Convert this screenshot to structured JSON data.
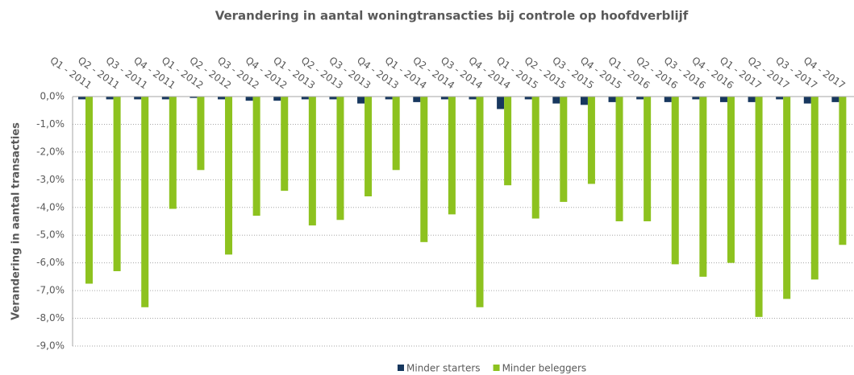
{
  "chart_data": {
    "type": "bar",
    "title": "Verandering  in  aantal  woningtransacties  bij  controle  op  hoofdverblijf",
    "y_label": "Verandering in aantal transacties",
    "categories": [
      "Q1 - 2011",
      "Q2 - 2011",
      "Q3 - 2011",
      "Q4 - 2011",
      "Q1 - 2012",
      "Q2 - 2012",
      "Q3 - 2012",
      "Q4 - 2012",
      "Q1 - 2013",
      "Q2 - 2013",
      "Q3 - 2013",
      "Q4 - 2013",
      "Q1 - 2014",
      "Q2 - 2014",
      "Q3 - 2014",
      "Q4 - 2014",
      "Q1 - 2015",
      "Q2 - 2015",
      "Q3 - 2015",
      "Q4 - 2015",
      "Q1 - 2016",
      "Q2 - 2016",
      "Q3 - 2016",
      "Q4 - 2016",
      "Q1 - 2017",
      "Q2 - 2017",
      "Q3 - 2017",
      "Q4 - 2017"
    ],
    "series": [
      {
        "name": "Minder starters",
        "color": "#17375e",
        "values": [
          -0.1,
          -0.1,
          -0.1,
          -0.1,
          -0.05,
          -0.1,
          -0.15,
          -0.15,
          -0.1,
          -0.1,
          -0.25,
          -0.1,
          -0.2,
          -0.1,
          -0.1,
          -0.45,
          -0.1,
          -0.25,
          -0.3,
          -0.2,
          -0.1,
          -0.2,
          -0.1,
          -0.2,
          -0.2,
          -0.1,
          -0.25,
          -0.2
        ]
      },
      {
        "name": "Minder beleggers",
        "color": "#8dc21f",
        "values": [
          -6.75,
          -6.3,
          -7.6,
          -4.05,
          -2.65,
          -5.7,
          -4.3,
          -3.4,
          -4.65,
          -4.45,
          -3.6,
          -2.65,
          -5.25,
          -4.25,
          -7.6,
          -3.2,
          -4.4,
          -3.8,
          -3.15,
          -4.5,
          -4.5,
          -6.05,
          -6.5,
          -6.0,
          -7.95,
          -7.3,
          -6.6,
          -5.35
        ]
      }
    ],
    "ylim": [
      -9,
      0
    ],
    "yticks": [
      {
        "value": 0,
        "label": "0,0%"
      },
      {
        "value": -1,
        "label": "-1,0%"
      },
      {
        "value": -2,
        "label": "-2,0%"
      },
      {
        "value": -3,
        "label": "-3,0%"
      },
      {
        "value": -4,
        "label": "-4,0%"
      },
      {
        "value": -5,
        "label": "-5,0%"
      },
      {
        "value": -6,
        "label": "-6,0%"
      },
      {
        "value": -7,
        "label": "-7,0%"
      },
      {
        "value": -8,
        "label": "-8,0%"
      },
      {
        "value": -9,
        "label": "-9,0%"
      }
    ],
    "grid": true,
    "legend": "bottom"
  }
}
